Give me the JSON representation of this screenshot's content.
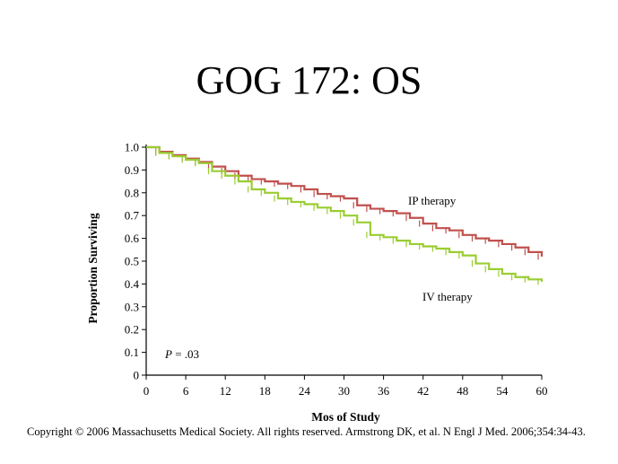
{
  "slide": {
    "title": "GOG 172: OS",
    "copyright": "Copyright © 2006 Massachusetts Medical Society. All rights reserved. Armstrong DK, et al. N Engl J Med. 2006;354:34-43."
  },
  "chart_data": {
    "type": "line",
    "title": "GOG 172: OS",
    "xlabel": "Mos of Study",
    "ylabel": "Proportion Surviving",
    "xlim": [
      0,
      60
    ],
    "ylim": [
      0,
      1.0
    ],
    "xticks": [
      0,
      6,
      12,
      18,
      24,
      30,
      36,
      42,
      48,
      54,
      60
    ],
    "xtick_labels": [
      "0",
      "6",
      "12",
      "18",
      "24",
      "30",
      "36",
      "42",
      "48",
      "54",
      "60"
    ],
    "yticks": [
      0,
      0.1,
      0.2,
      0.3,
      0.4,
      0.5,
      0.6,
      0.7,
      0.8,
      0.9,
      1.0
    ],
    "ytick_labels": [
      "0",
      "0.1",
      "0.2",
      "0.3",
      "0.4",
      "0.5",
      "0.6",
      "0.7",
      "0.8",
      "0.9",
      "1.0"
    ],
    "grid": false,
    "annotations": [
      {
        "prefix": "P",
        "text": " = .03"
      }
    ],
    "series": [
      {
        "name": "IP therapy",
        "color": "#c0504d",
        "x": [
          0,
          2,
          4,
          6,
          8,
          10,
          12,
          14,
          16,
          18,
          20,
          22,
          24,
          26,
          28,
          30,
          32,
          34,
          36,
          38,
          40,
          42,
          44,
          46,
          48,
          50,
          52,
          54,
          56,
          58,
          60
        ],
        "y": [
          1.0,
          0.98,
          0.965,
          0.95,
          0.935,
          0.915,
          0.895,
          0.875,
          0.86,
          0.85,
          0.84,
          0.83,
          0.815,
          0.795,
          0.785,
          0.775,
          0.745,
          0.73,
          0.72,
          0.71,
          0.69,
          0.665,
          0.645,
          0.635,
          0.615,
          0.6,
          0.59,
          0.575,
          0.56,
          0.54,
          0.52
        ]
      },
      {
        "name": "IV therapy",
        "color": "#9acd32",
        "x": [
          0,
          2,
          4,
          6,
          8,
          10,
          12,
          14,
          16,
          18,
          20,
          22,
          24,
          26,
          28,
          30,
          32,
          34,
          36,
          38,
          40,
          42,
          44,
          46,
          48,
          50,
          52,
          54,
          56,
          58,
          60
        ],
        "y": [
          1.0,
          0.975,
          0.96,
          0.945,
          0.93,
          0.895,
          0.875,
          0.85,
          0.815,
          0.8,
          0.775,
          0.76,
          0.75,
          0.735,
          0.72,
          0.7,
          0.67,
          0.615,
          0.605,
          0.59,
          0.575,
          0.565,
          0.555,
          0.54,
          0.525,
          0.49,
          0.465,
          0.445,
          0.43,
          0.42,
          0.41
        ]
      }
    ]
  }
}
